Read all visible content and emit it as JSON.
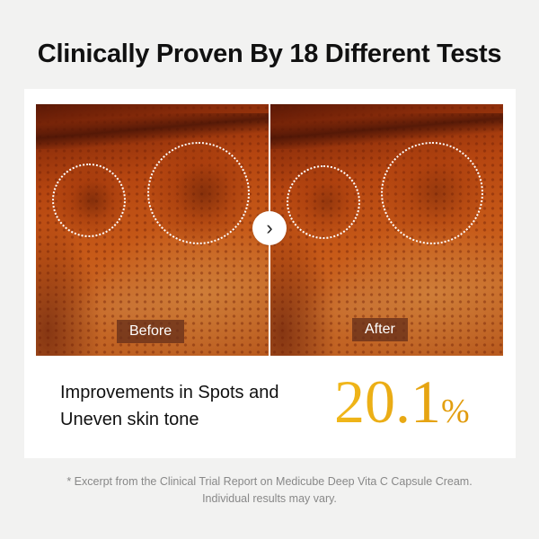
{
  "title": "Clinically Proven By 18 Different Tests",
  "comparison": {
    "before_label": "Before",
    "after_label": "After",
    "next_icon": "chevron-right-icon"
  },
  "result": {
    "line1": "Improvements in Spots and",
    "line2": "Uneven skin tone",
    "value": "20.1",
    "unit": "%",
    "accent_color": "#e8a812"
  },
  "footnote": {
    "line1": "* Excerpt from the Clinical Trial Report on Medicube Deep Vita C Capsule Cream.",
    "line2": "Individual results may vary."
  }
}
